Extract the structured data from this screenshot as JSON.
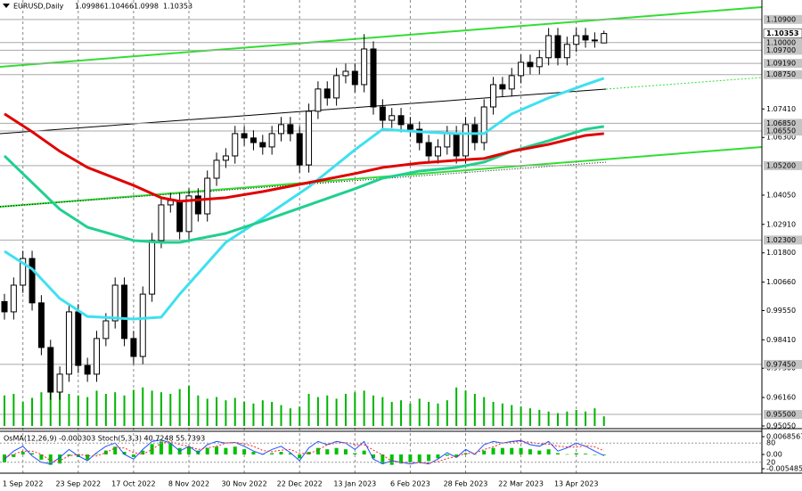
{
  "chart_data": [
    {
      "type": "candlestick",
      "title": "EURUSD,Daily",
      "categories": [
        null,
        null,
        "1 Sep 2022",
        null,
        null,
        null,
        null,
        null,
        "23 Sep 2022",
        null,
        null,
        null,
        null,
        null,
        "17 Oct 2022",
        null,
        null,
        null,
        null,
        null,
        "8 Nov 2022",
        null,
        null,
        null,
        null,
        null,
        "30 Nov 2022",
        null,
        null,
        null,
        null,
        null,
        "22 Dec 2022",
        null,
        null,
        null,
        null,
        null,
        "13 Jan 2023",
        null,
        null,
        null,
        null,
        null,
        "6 Feb 2023",
        null,
        null,
        null,
        null,
        null,
        "28 Feb 2023",
        null,
        null,
        null,
        null,
        null,
        "22 Mar 2023",
        null,
        null,
        null,
        null,
        null,
        "13 Apr 2023",
        null,
        null,
        null
      ],
      "open": [
        0.999,
        0.995,
        1.0054,
        1.0158,
        0.9985,
        0.9811,
        0.9637,
        0.9707,
        0.995,
        0.9741,
        0.9707,
        0.9846,
        0.9915,
        1.0054,
        0.9846,
        0.9776,
        1.0019,
        1.0228,
        1.0367,
        1.0384,
        1.0263,
        1.0402,
        1.0332,
        1.0471,
        1.0541,
        1.0558,
        1.0645,
        1.0628,
        1.061,
        1.0593,
        1.0645,
        1.068,
        1.0645,
        1.0523,
        1.0732,
        1.0819,
        1.0784,
        1.0871,
        1.0888,
        1.0836,
        1.0975,
        1.0749,
        1.0697,
        1.0715,
        1.068,
        1.0662,
        1.061,
        1.0558,
        1.0593,
        1.0645,
        1.0558,
        1.068,
        1.061,
        1.0749,
        1.0836,
        1.0819,
        1.0871,
        1.0923,
        1.0906,
        1.0941,
        1.1027,
        1.0941,
        1.0993,
        1.1027,
        1.101,
        1.09986
      ],
      "high": [
        1.002,
        1.0084,
        1.0188,
        1.0188,
        1.0015,
        0.9841,
        0.9737,
        0.998,
        0.998,
        0.9771,
        0.9876,
        0.9945,
        1.0084,
        1.0084,
        0.9876,
        1.0049,
        1.0258,
        1.0397,
        1.0414,
        1.0414,
        1.0432,
        1.0432,
        1.0501,
        1.0571,
        1.0588,
        1.0675,
        1.0675,
        1.0658,
        1.064,
        1.0675,
        1.071,
        1.071,
        1.0675,
        1.0762,
        1.0849,
        1.0849,
        1.0901,
        1.0918,
        1.0918,
        1.1033,
        1.1005,
        1.0779,
        1.0745,
        1.0745,
        1.071,
        1.0692,
        1.064,
        1.0623,
        1.0675,
        1.0675,
        1.071,
        1.071,
        1.0779,
        1.0866,
        1.0866,
        1.0901,
        1.0953,
        1.0953,
        1.0971,
        1.1057,
        1.1057,
        1.1023,
        1.1057,
        1.1057,
        1.104,
        1.10466
      ],
      "low": [
        0.992,
        0.992,
        1.0024,
        0.9955,
        0.9781,
        0.9607,
        0.9607,
        0.9677,
        0.9711,
        0.9677,
        0.9677,
        0.9816,
        0.9885,
        0.9816,
        0.9746,
        0.9746,
        0.9989,
        1.0198,
        1.0337,
        1.0233,
        1.0233,
        1.0302,
        1.0302,
        1.0441,
        1.0511,
        1.0528,
        1.0598,
        1.058,
        1.0563,
        1.0563,
        1.0615,
        1.0615,
        1.0493,
        1.0493,
        1.0702,
        1.0754,
        1.0754,
        1.0841,
        1.0806,
        1.0806,
        1.0719,
        1.0667,
        1.0667,
        1.065,
        1.0632,
        1.058,
        1.0528,
        1.0528,
        1.0563,
        1.0528,
        1.0528,
        1.058,
        1.058,
        1.0719,
        1.0789,
        1.0789,
        1.0841,
        1.0876,
        1.0876,
        1.0911,
        1.0911,
        1.0911,
        1.0963,
        1.098,
        1.098,
        1.0998
      ],
      "close": [
        0.995,
        1.0054,
        1.0158,
        0.9985,
        0.9811,
        0.9637,
        0.9707,
        0.995,
        0.9741,
        0.9707,
        0.9846,
        0.9915,
        1.0054,
        0.9846,
        0.9776,
        1.0019,
        1.0228,
        1.0367,
        1.0384,
        1.0263,
        1.0402,
        1.0332,
        1.0471,
        1.0541,
        1.0558,
        1.0645,
        1.0628,
        1.061,
        1.0593,
        1.0645,
        1.068,
        1.0645,
        1.0523,
        1.0732,
        1.0819,
        1.0784,
        1.0871,
        1.0888,
        1.0836,
        1.0975,
        1.0749,
        1.0697,
        1.0715,
        1.068,
        1.0662,
        1.061,
        1.0558,
        1.0593,
        1.0645,
        1.0558,
        1.068,
        1.061,
        1.0749,
        1.0836,
        1.0819,
        1.0871,
        1.0923,
        1.0906,
        1.0941,
        1.1027,
        1.0941,
        1.0993,
        1.1027,
        1.101,
        1.101,
        1.10353
      ],
      "volume": [
        38,
        40,
        30,
        35,
        42,
        50,
        45,
        40,
        38,
        36,
        44,
        40,
        42,
        38,
        45,
        48,
        44,
        42,
        40,
        46,
        50,
        38,
        34,
        36,
        32,
        35,
        30,
        28,
        32,
        30,
        26,
        22,
        24,
        40,
        36,
        38,
        34,
        40,
        42,
        44,
        38,
        36,
        30,
        32,
        28,
        34,
        30,
        28,
        32,
        48,
        44,
        40,
        36,
        30,
        28,
        26,
        24,
        22,
        20,
        18,
        16,
        18,
        20,
        18,
        22,
        12
      ],
      "volume_color": "#00b400",
      "series": [
        {
          "color": "#3fe0f0",
          "x": [
            0,
            3,
            6,
            9,
            14,
            17,
            19,
            24,
            28,
            33,
            38,
            41,
            45,
            49,
            52,
            55,
            59,
            63,
            65
          ],
          "values": [
            1.0186,
            1.0117,
            1.0002,
            0.9932,
            0.9922,
            0.9929,
            1.0019,
            1.0221,
            1.0315,
            1.0437,
            1.0582,
            1.0662,
            1.0652,
            1.0645,
            1.0645,
            1.0722,
            1.0784,
            1.0836,
            1.0861
          ]
        },
        {
          "color": "#20d090",
          "x": [
            0,
            3,
            6,
            9,
            14,
            17,
            19,
            24,
            28,
            33,
            38,
            41,
            45,
            49,
            52,
            55,
            59,
            63,
            65
          ],
          "values": [
            1.0558,
            1.0454,
            1.035,
            1.028,
            1.0228,
            1.0221,
            1.0221,
            1.0256,
            1.0304,
            1.0367,
            1.043,
            1.0471,
            1.0499,
            1.0513,
            1.0534,
            1.0576,
            1.0617,
            1.0662,
            1.0673
          ]
        },
        {
          "color": "#e00000",
          "x": [
            0,
            3,
            6,
            9,
            14,
            17,
            19,
            24,
            28,
            33,
            38,
            41,
            45,
            49,
            52,
            55,
            59,
            63,
            65
          ],
          "values": [
            1.0722,
            1.0652,
            1.0576,
            1.0513,
            1.0443,
            1.0395,
            1.0381,
            1.0395,
            1.0419,
            1.0454,
            1.0489,
            1.0513,
            1.053,
            1.0541,
            1.0548,
            1.0576,
            1.0603,
            1.0638,
            1.0645
          ]
        }
      ],
      "levels": [
        {
          "value": 1.109,
          "label": "1.10900"
        },
        {
          "value": 1.1,
          "label": "1.10000"
        },
        {
          "value": 1.097,
          "label": "1.09700"
        },
        {
          "value": 1.0919,
          "label": "1.09190"
        },
        {
          "value": 1.0875,
          "label": "1.08750"
        },
        {
          "value": 1.0685,
          "label": "1.06850"
        },
        {
          "value": 1.0655,
          "label": "1.06550"
        },
        {
          "value": 1.052,
          "label": "1.05200"
        },
        {
          "value": 1.023,
          "label": "1.02300"
        },
        {
          "value": 0.9745,
          "label": "0.97450"
        },
        {
          "value": 0.955,
          "label": "0.95500"
        }
      ],
      "ylim": [
        0.9505,
        1.1166
      ],
      "yticks": [
        {
          "value": 1.0741,
          "label": "1.07410"
        },
        {
          "value": 1.063,
          "label": "1.06300"
        },
        {
          "value": 1.0405,
          "label": "1.04050"
        },
        {
          "value": 1.0291,
          "label": "1.02910"
        },
        {
          "value": 1.018,
          "label": "1.01800"
        },
        {
          "value": 1.0066,
          "label": "1.00660"
        },
        {
          "value": 0.9955,
          "label": "0.99550"
        },
        {
          "value": 0.9841,
          "label": "0.98410"
        },
        {
          "value": 0.973,
          "label": "0.97300"
        },
        {
          "value": 0.9616,
          "label": "0.96160"
        },
        {
          "value": 0.9505,
          "label": "0.95050"
        }
      ]
    },
    {
      "type": "oscillator",
      "label": "OsMA(12,26,9) -0.000303 Stoch(5,3,3) 40.7248 55.7393",
      "osma": [
        -0.003,
        -0.001,
        0.001,
        0.0005,
        -0.002,
        -0.004,
        -0.0035,
        -0.0005,
        -0.001,
        -0.002,
        0.0002,
        0.0015,
        0.003,
        0.001,
        -0.001,
        0.0015,
        0.004,
        0.005,
        0.0045,
        0.0025,
        0.003,
        0.0015,
        0.0025,
        0.003,
        0.0025,
        0.003,
        0.002,
        0.001,
        0.0001,
        0.0005,
        0.001,
        0.0005,
        -0.0015,
        0.001,
        0.0025,
        0.002,
        0.0025,
        0.002,
        0.0005,
        0.0015,
        -0.0015,
        -0.0035,
        -0.004,
        -0.0035,
        -0.003,
        -0.003,
        -0.0025,
        -0.0015,
        -0.0005,
        -0.001,
        0.0005,
        0.0001,
        0.0015,
        0.0025,
        0.0025,
        0.0025,
        0.0025,
        0.002,
        0.0015,
        0.002,
        0.0005,
        0.0001,
        0.0005,
        0.0003,
        -0.0002,
        -0.000303
      ],
      "osma_color": "#00c000",
      "osma_lim": [
        -0.005485,
        0.0068567
      ],
      "osma_ticks": [
        0.0068567,
        {
          "value": 0,
          "label": "0.00"
        },
        -0.005485
      ],
      "stoch_main": [
        30,
        55,
        70,
        40,
        20,
        15,
        35,
        60,
        40,
        25,
        50,
        70,
        80,
        45,
        30,
        60,
        85,
        90,
        80,
        55,
        70,
        50,
        75,
        85,
        80,
        82,
        70,
        55,
        45,
        60,
        70,
        50,
        25,
        65,
        85,
        75,
        85,
        80,
        60,
        85,
        30,
        15,
        25,
        20,
        15,
        20,
        15,
        30,
        50,
        35,
        60,
        45,
        75,
        85,
        80,
        85,
        88,
        75,
        70,
        85,
        55,
        65,
        80,
        70,
        55,
        40.7248
      ],
      "stoch_signal": [
        35,
        45,
        55,
        55,
        45,
        25,
        25,
        40,
        45,
        40,
        40,
        50,
        65,
        65,
        50,
        45,
        60,
        80,
        85,
        75,
        70,
        60,
        65,
        70,
        80,
        82,
        78,
        70,
        57,
        53,
        58,
        60,
        48,
        47,
        58,
        75,
        80,
        82,
        75,
        75,
        58,
        43,
        23,
        20,
        20,
        18,
        18,
        22,
        32,
        38,
        48,
        48,
        60,
        68,
        80,
        83,
        85,
        83,
        78,
        77,
        70,
        68,
        67,
        72,
        68,
        55.7393
      ],
      "stoch_main_color": "#1f4fff",
      "stoch_signal_color": "#ff2020",
      "stoch_lim": [
        0,
        100
      ],
      "stoch_ticks": [
        80,
        20
      ]
    }
  ]
}
